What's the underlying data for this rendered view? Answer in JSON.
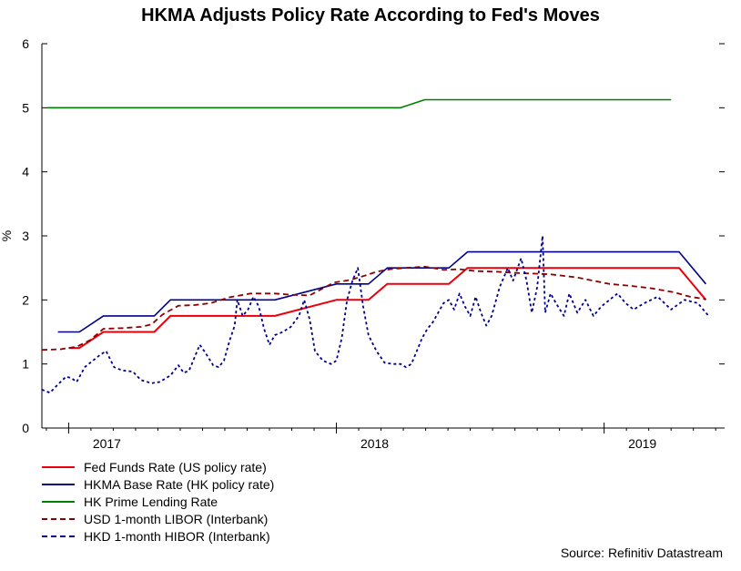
{
  "title": "HKMA Adjusts Policy Rate According to Fed's Moves",
  "source": "Source: Refinitiv Datastream",
  "chart_data": {
    "type": "line",
    "title": "HKMA Adjusts Policy Rate According to Fed's Moves",
    "xlabel": "",
    "ylabel": "%",
    "xlim": [
      2016.9,
      2019.45
    ],
    "ylim": [
      0,
      6
    ],
    "yticks": [
      0,
      1,
      2,
      3,
      4,
      5,
      6
    ],
    "xticks": [
      {
        "label": "2017",
        "x": 2017.0
      },
      {
        "label": "2018",
        "x": 2018.0
      },
      {
        "label": "2019",
        "x": 2019.0
      }
    ],
    "grid": false,
    "legend_position": "bottom-left",
    "series": [
      {
        "name": "Fed Funds Rate (US policy rate)",
        "color": "#e8000b",
        "style": "solid",
        "points": [
          [
            2017.0,
            1.25
          ],
          [
            2017.04,
            1.25
          ],
          [
            2017.13,
            1.5
          ],
          [
            2017.32,
            1.5
          ],
          [
            2017.38,
            1.75
          ],
          [
            2017.77,
            1.75
          ],
          [
            2018.0,
            2.0
          ],
          [
            2018.12,
            2.0
          ],
          [
            2018.19,
            2.25
          ],
          [
            2018.42,
            2.25
          ],
          [
            2018.49,
            2.5
          ],
          [
            2019.28,
            2.5
          ],
          [
            2019.38,
            2.0
          ]
        ]
      },
      {
        "name": "HKMA Base Rate (HK policy rate)",
        "color": "#00008b",
        "style": "solid",
        "points": [
          [
            2016.96,
            1.5
          ],
          [
            2017.04,
            1.5
          ],
          [
            2017.13,
            1.75
          ],
          [
            2017.32,
            1.75
          ],
          [
            2017.38,
            2.0
          ],
          [
            2017.77,
            2.0
          ],
          [
            2018.0,
            2.25
          ],
          [
            2018.12,
            2.25
          ],
          [
            2018.19,
            2.5
          ],
          [
            2018.42,
            2.5
          ],
          [
            2018.49,
            2.75
          ],
          [
            2019.28,
            2.75
          ],
          [
            2019.38,
            2.25
          ]
        ]
      },
      {
        "name": "HK Prime Lending Rate",
        "color": "#008000",
        "style": "solid",
        "points": [
          [
            2016.92,
            5.0
          ],
          [
            2018.15,
            5.0
          ],
          [
            2018.24,
            5.0
          ],
          [
            2018.33,
            5.125
          ],
          [
            2019.25,
            5.125
          ]
        ]
      },
      {
        "name": "USD 1-month LIBOR (Interbank)",
        "color": "#8b0000",
        "style": "dashed",
        "points": [
          [
            2016.9,
            1.22
          ],
          [
            2016.97,
            1.23
          ],
          [
            2017.03,
            1.27
          ],
          [
            2017.08,
            1.37
          ],
          [
            2017.13,
            1.55
          ],
          [
            2017.2,
            1.56
          ],
          [
            2017.27,
            1.58
          ],
          [
            2017.31,
            1.62
          ],
          [
            2017.35,
            1.77
          ],
          [
            2017.41,
            1.91
          ],
          [
            2017.47,
            1.92
          ],
          [
            2017.53,
            1.95
          ],
          [
            2017.6,
            2.04
          ],
          [
            2017.68,
            2.1
          ],
          [
            2017.77,
            2.1
          ],
          [
            2017.83,
            2.08
          ],
          [
            2017.9,
            2.07
          ],
          [
            2017.99,
            2.27
          ],
          [
            2018.05,
            2.31
          ],
          [
            2018.1,
            2.37
          ],
          [
            2018.15,
            2.44
          ],
          [
            2018.2,
            2.48
          ],
          [
            2018.26,
            2.5
          ],
          [
            2018.33,
            2.52
          ],
          [
            2018.4,
            2.47
          ],
          [
            2018.46,
            2.48
          ],
          [
            2018.52,
            2.45
          ],
          [
            2018.6,
            2.44
          ],
          [
            2018.68,
            2.42
          ],
          [
            2018.8,
            2.4
          ],
          [
            2018.9,
            2.35
          ],
          [
            2019.02,
            2.25
          ],
          [
            2019.1,
            2.22
          ],
          [
            2019.18,
            2.18
          ],
          [
            2019.26,
            2.12
          ],
          [
            2019.32,
            2.05
          ],
          [
            2019.38,
            2.01
          ]
        ]
      },
      {
        "name": "HKD 1-month HIBOR (Interbank)",
        "color": "#00008b",
        "style": "dotted",
        "points": [
          [
            2016.9,
            0.6
          ],
          [
            2016.93,
            0.55
          ],
          [
            2016.96,
            0.68
          ],
          [
            2016.99,
            0.8
          ],
          [
            2017.01,
            0.78
          ],
          [
            2017.03,
            0.72
          ],
          [
            2017.06,
            0.95
          ],
          [
            2017.09,
            1.05
          ],
          [
            2017.12,
            1.15
          ],
          [
            2017.14,
            1.2
          ],
          [
            2017.17,
            0.95
          ],
          [
            2017.2,
            0.9
          ],
          [
            2017.24,
            0.88
          ],
          [
            2017.27,
            0.75
          ],
          [
            2017.31,
            0.7
          ],
          [
            2017.34,
            0.72
          ],
          [
            2017.38,
            0.82
          ],
          [
            2017.41,
            0.98
          ],
          [
            2017.43,
            0.86
          ],
          [
            2017.45,
            0.9
          ],
          [
            2017.47,
            1.1
          ],
          [
            2017.49,
            1.3
          ],
          [
            2017.51,
            1.18
          ],
          [
            2017.54,
            0.98
          ],
          [
            2017.56,
            0.95
          ],
          [
            2017.58,
            1.05
          ],
          [
            2017.6,
            1.35
          ],
          [
            2017.62,
            1.6
          ],
          [
            2017.63,
            2.0
          ],
          [
            2017.65,
            1.75
          ],
          [
            2017.67,
            1.85
          ],
          [
            2017.69,
            2.05
          ],
          [
            2017.71,
            1.9
          ],
          [
            2017.73,
            1.55
          ],
          [
            2017.75,
            1.3
          ],
          [
            2017.77,
            1.45
          ],
          [
            2017.8,
            1.5
          ],
          [
            2017.83,
            1.58
          ],
          [
            2017.86,
            1.75
          ],
          [
            2017.88,
            2.0
          ],
          [
            2017.9,
            1.7
          ],
          [
            2017.92,
            1.2
          ],
          [
            2017.95,
            1.05
          ],
          [
            2017.98,
            1.0
          ],
          [
            2018.0,
            1.05
          ],
          [
            2018.02,
            1.4
          ],
          [
            2018.04,
            2.0
          ],
          [
            2018.06,
            2.3
          ],
          [
            2018.08,
            2.5
          ],
          [
            2018.1,
            1.9
          ],
          [
            2018.12,
            1.45
          ],
          [
            2018.15,
            1.2
          ],
          [
            2018.18,
            1.02
          ],
          [
            2018.21,
            1.0
          ],
          [
            2018.24,
            1.0
          ],
          [
            2018.26,
            0.95
          ],
          [
            2018.28,
            1.0
          ],
          [
            2018.3,
            1.2
          ],
          [
            2018.32,
            1.4
          ],
          [
            2018.34,
            1.55
          ],
          [
            2018.36,
            1.65
          ],
          [
            2018.38,
            1.8
          ],
          [
            2018.4,
            1.95
          ],
          [
            2018.42,
            2.0
          ],
          [
            2018.44,
            1.85
          ],
          [
            2018.46,
            2.1
          ],
          [
            2018.48,
            1.9
          ],
          [
            2018.5,
            1.75
          ],
          [
            2018.52,
            2.05
          ],
          [
            2018.54,
            1.8
          ],
          [
            2018.56,
            1.6
          ],
          [
            2018.58,
            1.75
          ],
          [
            2018.61,
            2.2
          ],
          [
            2018.64,
            2.5
          ],
          [
            2018.66,
            2.3
          ],
          [
            2018.69,
            2.65
          ],
          [
            2018.71,
            2.3
          ],
          [
            2018.73,
            1.8
          ],
          [
            2018.75,
            2.2
          ],
          [
            2018.77,
            3.0
          ],
          [
            2018.78,
            1.8
          ],
          [
            2018.8,
            2.1
          ],
          [
            2018.82,
            1.95
          ],
          [
            2018.85,
            1.75
          ],
          [
            2018.87,
            2.1
          ],
          [
            2018.9,
            1.8
          ],
          [
            2018.93,
            2.0
          ],
          [
            2018.96,
            1.75
          ],
          [
            2018.99,
            1.9
          ],
          [
            2019.02,
            2.0
          ],
          [
            2019.05,
            2.1
          ],
          [
            2019.08,
            1.95
          ],
          [
            2019.11,
            1.85
          ],
          [
            2019.15,
            1.95
          ],
          [
            2019.2,
            2.05
          ],
          [
            2019.25,
            1.85
          ],
          [
            2019.3,
            2.0
          ],
          [
            2019.35,
            1.95
          ],
          [
            2019.39,
            1.75
          ]
        ]
      }
    ]
  }
}
